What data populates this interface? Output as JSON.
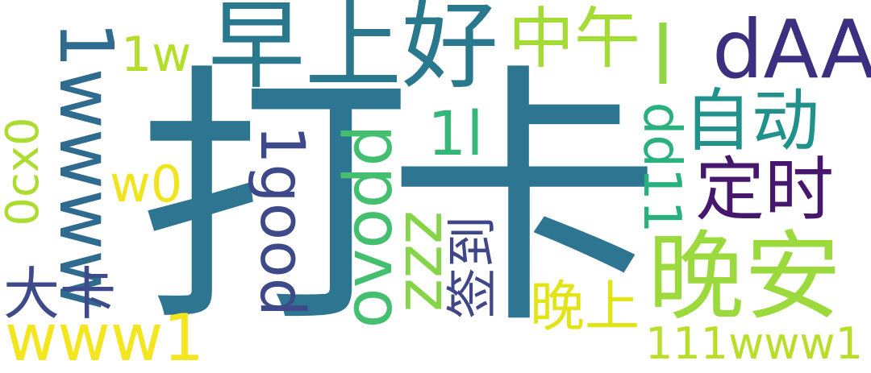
{
  "words": [
    {
      "text": "打卡",
      "color": "#2d7590"
    },
    {
      "text": "早上好",
      "color": "#2a788e"
    },
    {
      "text": "中午",
      "color": "#a5db36"
    },
    {
      "text": "dAA",
      "color": "#3b2f7f"
    },
    {
      "text": "l",
      "color": "#90d743"
    },
    {
      "text": "晚安",
      "color": "#9bd93c"
    },
    {
      "text": "自动",
      "color": "#21918c"
    },
    {
      "text": "定时",
      "color": "#46186d"
    },
    {
      "text": "1wwww",
      "color": "#2f6b8e"
    },
    {
      "text": "1w",
      "color": "#b5de2b"
    },
    {
      "text": "0cx0",
      "color": "#addc30"
    },
    {
      "text": "w0",
      "color": "#f0e51c"
    },
    {
      "text": "大卡",
      "color": "#3e4a89"
    },
    {
      "text": "www1",
      "color": "#f4e61e"
    },
    {
      "text": "1good",
      "color": "#3e4989"
    },
    {
      "text": "ovodd",
      "color": "#44bf70"
    },
    {
      "text": "1l",
      "color": "#35b779"
    },
    {
      "text": "zzz",
      "color": "#86d549"
    },
    {
      "text": "签到",
      "color": "#3f4788"
    },
    {
      "text": "dd11",
      "color": "#2ab07f"
    },
    {
      "text": "晚上",
      "color": "#e2e418"
    },
    {
      "text": "111www1",
      "color": "#b8de29"
    }
  ]
}
